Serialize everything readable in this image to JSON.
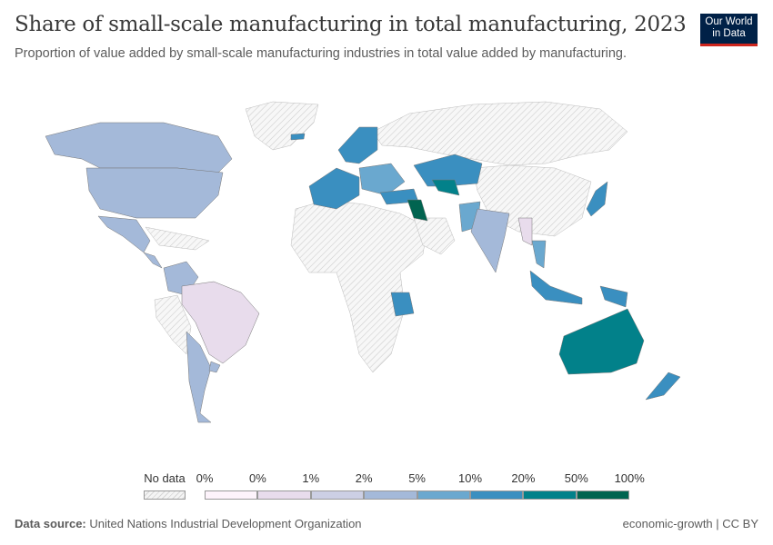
{
  "title": "Share of small-scale manufacturing in total manufacturing, 2023",
  "subtitle": "Proportion of value added by small-scale manufacturing industries in total value added by manufacturing.",
  "logo": {
    "line1": "Our World",
    "line2": "in Data"
  },
  "footer": {
    "source_label": "Data source:",
    "source": "United Nations Industrial Development Organization",
    "license": "economic-growth | CC BY"
  },
  "chart_data": {
    "type": "choropleth",
    "year": 2023,
    "legend": {
      "no_data_label": "No data",
      "ticks": [
        "0%",
        "0%",
        "1%",
        "2%",
        "5%",
        "10%",
        "20%",
        "50%",
        "100%"
      ],
      "colors": [
        "#fdf3fb",
        "#e8dcec",
        "#cccfe4",
        "#a4b9d9",
        "#6aa8cf",
        "#3a8fc0",
        "#02818a",
        "#016450"
      ],
      "no_data_color": "#eeeeee"
    },
    "regions_bin": {
      "canada": 3,
      "usa": 3,
      "mexico": 3,
      "central_america": 3,
      "colombia_venezuela": 3,
      "brazil": 1,
      "southern_cone": 3,
      "uruguay": 3,
      "western_europe": 5,
      "central_europe": 4,
      "scandinavia": 5,
      "turkey": 5,
      "kazakhstan": 5,
      "uzbekistan": 6,
      "iraq": 7,
      "pakistan": 4,
      "india": 3,
      "myanmar": 1,
      "thailand": 4,
      "japan": 5,
      "indonesia": 5,
      "papua": 5,
      "australia": 6,
      "new_zealand": 5,
      "tanzania": 5,
      "iceland": 5
    }
  }
}
